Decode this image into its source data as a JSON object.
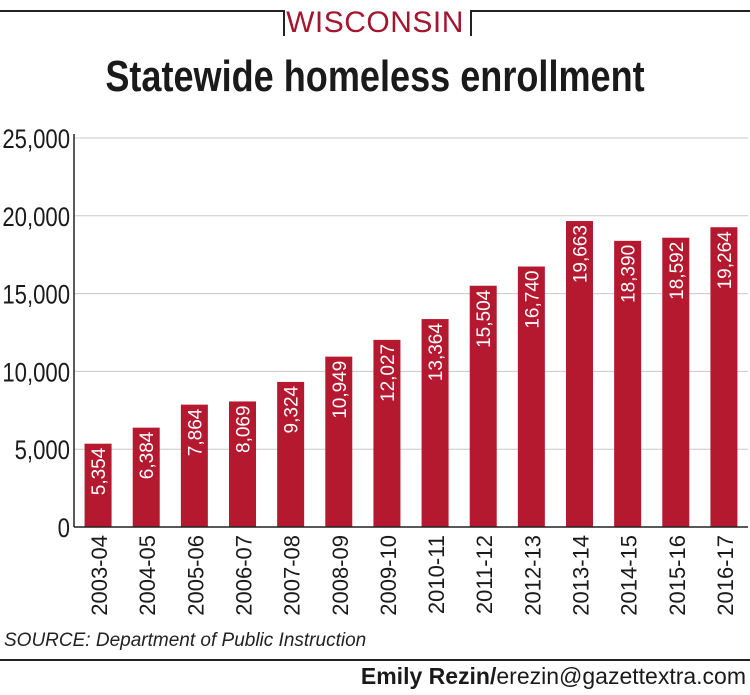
{
  "header": {
    "kicker": "WISCONSIN",
    "title": "Statewide homeless enrollment"
  },
  "chart_data": {
    "type": "bar",
    "title": "Statewide homeless enrollment",
    "xlabel": "",
    "ylabel": "",
    "categories": [
      "2003-04",
      "2004-05",
      "2005-06",
      "2006-07",
      "2007-08",
      "2008-09",
      "2009-10",
      "2010-11",
      "2011-12",
      "2012-13",
      "2013-14",
      "2014-15",
      "2015-16",
      "2016-17"
    ],
    "values": [
      5354,
      6384,
      7864,
      8069,
      9324,
      10949,
      12027,
      13364,
      15504,
      16740,
      19663,
      18390,
      18592,
      19264
    ],
    "data_labels": [
      "5,354",
      "6,384",
      "7,864",
      "8,069",
      "9,324",
      "10,949",
      "12,027",
      "13,364",
      "15,504",
      "16,740",
      "19,663",
      "18,390",
      "18,592",
      "19,264"
    ],
    "ylim": [
      0,
      25000
    ],
    "yticks": [
      0,
      5000,
      10000,
      15000,
      20000,
      25000
    ],
    "ytick_labels": [
      "0",
      "5,000",
      "10,000",
      "15,000",
      "20,000",
      "25,000"
    ],
    "grid": true,
    "legend": "none",
    "bar_color": "#b5192f"
  },
  "footer": {
    "source": "SOURCE: Department of Public Instruction",
    "credit_name": "Emily Rezin/",
    "credit_email": "erezin@gazettextra.com"
  }
}
